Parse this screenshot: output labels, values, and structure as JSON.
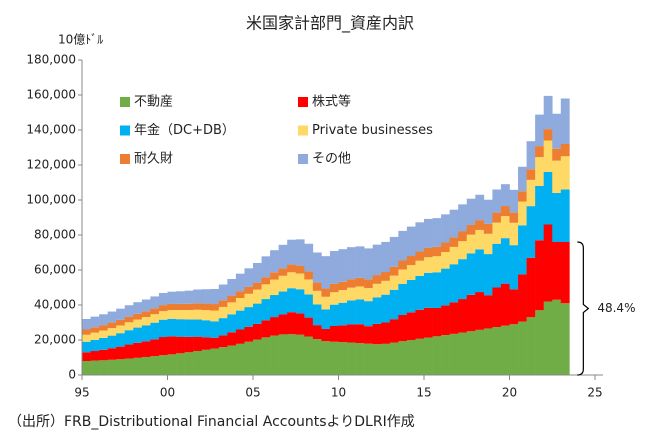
{
  "chart_data": {
    "type": "stacked_bar",
    "title": "米国家計部門_資産内訳",
    "y_label": "10億ﾄﾞﾙ",
    "source": "（出所）FRB_Distributional Financial AccountsよりDLRI作成",
    "annotations": [
      "48.4%"
    ],
    "legend": "upper left",
    "grid": false,
    "x": [
      1995,
      1995.5,
      1996,
      1996.5,
      1997,
      1997.5,
      1998,
      1998.5,
      1999,
      1999.5,
      2000,
      2000.5,
      2001,
      2001.5,
      2002,
      2002.5,
      2003,
      2003.5,
      2004,
      2004.5,
      2005,
      2005.5,
      2006,
      2006.5,
      2007,
      2007.5,
      2008,
      2008.5,
      2009,
      2009.5,
      2010,
      2010.5,
      2011,
      2011.5,
      2012,
      2012.5,
      2013,
      2013.5,
      2014,
      2014.5,
      2015,
      2015.5,
      2016,
      2016.5,
      2017,
      2017.5,
      2018,
      2018.5,
      2019,
      2019.5,
      2020,
      2020.5,
      2021,
      2021.5,
      2022,
      2022.5,
      2023
    ],
    "xlim": [
      1995,
      2025
    ],
    "xticks": [
      {
        "value": 1995,
        "label": "95"
      },
      {
        "value": 2000,
        "label": "00"
      },
      {
        "value": 2005,
        "label": "05"
      },
      {
        "value": 2010,
        "label": "10"
      },
      {
        "value": 2015,
        "label": "15"
      },
      {
        "value": 2020,
        "label": "20"
      },
      {
        "value": 2025,
        "label": "25"
      }
    ],
    "ylim": [
      0,
      180000
    ],
    "yticks": [
      0,
      {
        "value": 20000,
        "label": "20,000"
      },
      {
        "value": 40000,
        "label": "40,000"
      },
      {
        "value": 60000,
        "label": "60,000"
      },
      {
        "value": 80000,
        "label": "80,000"
      },
      {
        "value": 100000,
        "label": "100,000"
      },
      {
        "value": 120000,
        "label": "120,000"
      },
      {
        "value": 140000,
        "label": "140,000"
      },
      {
        "value": 160000,
        "label": "160,000"
      },
      {
        "value": 180000,
        "label": "180,000"
      }
    ],
    "series": [
      {
        "name": "不動産",
        "color": "#70ad47",
        "values": [
          8000,
          8200,
          8400,
          8700,
          9000,
          9400,
          9800,
          10300,
          10800,
          11300,
          11800,
          12400,
          13000,
          13700,
          14400,
          15100,
          15900,
          16800,
          17800,
          19000,
          20200,
          21500,
          22500,
          23200,
          23300,
          23000,
          22000,
          20500,
          19300,
          19000,
          18800,
          18500,
          18200,
          17900,
          17600,
          17800,
          18500,
          19300,
          20000,
          20700,
          21400,
          22100,
          22800,
          23500,
          24200,
          25000,
          25800,
          26600,
          27400,
          28200,
          29000,
          30500,
          33000,
          37000,
          42000,
          43000,
          41000
        ]
      },
      {
        "name": "株式等",
        "color": "#ff0000",
        "values": [
          5000,
          5500,
          6000,
          6600,
          7200,
          8000,
          8600,
          9000,
          9600,
          10400,
          10300,
          9500,
          8800,
          8200,
          7200,
          6200,
          6800,
          7600,
          8200,
          8600,
          9000,
          9800,
          10600,
          11400,
          12600,
          12200,
          10800,
          8000,
          7000,
          9000,
          9600,
          10400,
          10800,
          10000,
          11600,
          12200,
          13400,
          15000,
          15800,
          16600,
          17000,
          16200,
          17000,
          18000,
          19200,
          20800,
          21600,
          19000,
          22600,
          24000,
          20000,
          27000,
          34000,
          40000,
          44000,
          33000,
          35000
        ]
      },
      {
        "name": "年金（DC+DB）",
        "color": "#00b0f0",
        "values": [
          6000,
          6400,
          6800,
          7200,
          7700,
          8200,
          8700,
          9100,
          9500,
          9900,
          10000,
          10000,
          9900,
          9800,
          9700,
          9400,
          9800,
          10300,
          10800,
          11200,
          11600,
          12100,
          12600,
          13100,
          13700,
          13800,
          13200,
          11800,
          11200,
          12200,
          12900,
          13700,
          14200,
          14300,
          15200,
          15900,
          16800,
          17700,
          18500,
          19300,
          20000,
          20400,
          21000,
          21800,
          22800,
          23700,
          24400,
          23500,
          25000,
          26000,
          25200,
          28000,
          29500,
          31000,
          30000,
          28000,
          30000
        ]
      },
      {
        "name": "Private businesses",
        "color": "#ffd966",
        "values": [
          4000,
          4100,
          4200,
          4300,
          4400,
          4500,
          4600,
          4700,
          4800,
          4900,
          5000,
          5200,
          5400,
          5600,
          5800,
          6100,
          6400,
          6800,
          7200,
          7600,
          8000,
          8400,
          8800,
          9000,
          9100,
          9000,
          8600,
          7800,
          7200,
          7100,
          7200,
          7300,
          7400,
          7500,
          7700,
          7900,
          8100,
          8300,
          8500,
          8700,
          8900,
          9200,
          9500,
          9900,
          10300,
          10700,
          11100,
          11600,
          12100,
          12600,
          12800,
          13600,
          15000,
          16500,
          18000,
          18500,
          19000
        ]
      },
      {
        "name": "耐久財",
        "color": "#ed7d31",
        "values": [
          3000,
          3050,
          3100,
          3150,
          3200,
          3250,
          3300,
          3350,
          3400,
          3450,
          3500,
          3550,
          3600,
          3650,
          3700,
          3750,
          3800,
          3850,
          3900,
          3950,
          4000,
          4100,
          4200,
          4300,
          4400,
          4500,
          4600,
          4700,
          4700,
          4750,
          4800,
          4850,
          4900,
          4950,
          5000,
          5050,
          5100,
          5150,
          5200,
          5250,
          5300,
          5350,
          5400,
          5450,
          5500,
          5550,
          5600,
          5650,
          5700,
          5750,
          5800,
          5900,
          6100,
          6300,
          6500,
          6800,
          7000
        ]
      },
      {
        "name": "その他",
        "color": "#8faadc",
        "values": [
          6000,
          6100,
          6200,
          6300,
          6400,
          6500,
          6600,
          6700,
          6800,
          6900,
          7000,
          7200,
          7500,
          7900,
          8200,
          8600,
          9000,
          9500,
          10000,
          10600,
          11200,
          11900,
          12600,
          13400,
          14200,
          15000,
          15800,
          17200,
          18500,
          18800,
          18600,
          18300,
          18000,
          17700,
          17400,
          17200,
          17000,
          16900,
          16800,
          16700,
          16600,
          16400,
          16100,
          15800,
          15500,
          15000,
          14500,
          13800,
          13200,
          12500,
          13000,
          14000,
          16000,
          18000,
          19000,
          20000,
          26000
        ]
      }
    ]
  }
}
